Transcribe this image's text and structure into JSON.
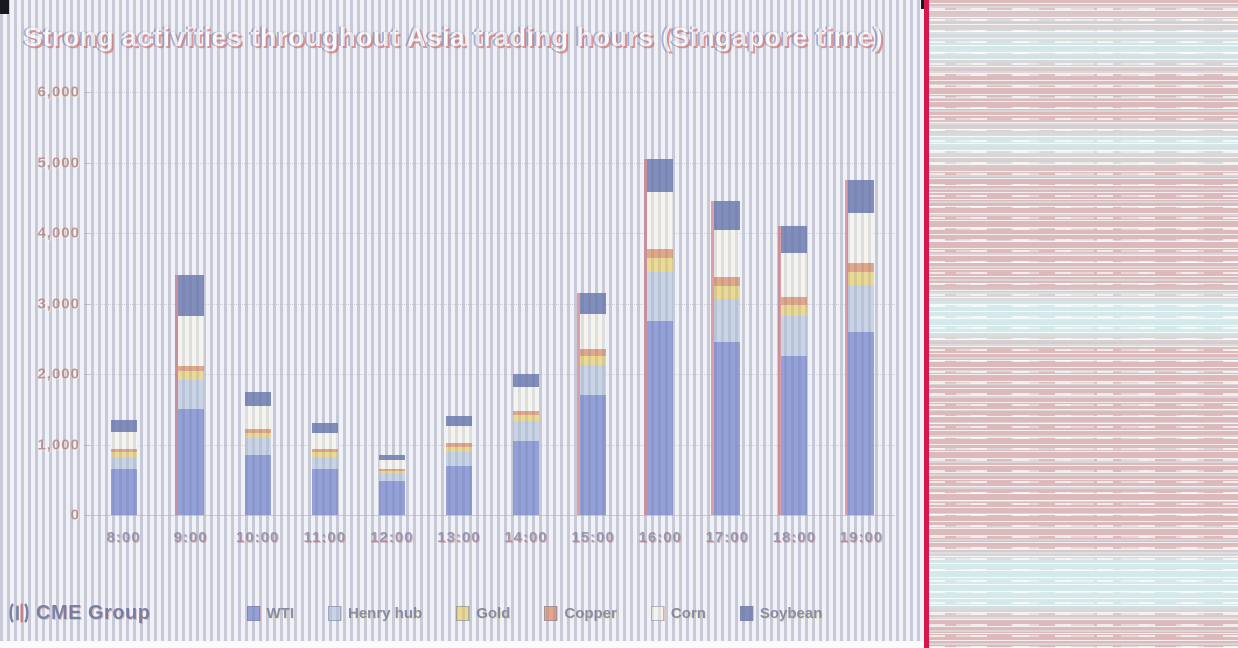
{
  "brand": {
    "name": "CME Group"
  },
  "chart_data": {
    "type": "bar",
    "stacked": true,
    "title": "Strong activities throughout Asia trading hours (Singapore time)",
    "categories": [
      "8:00",
      "9:00",
      "10:00",
      "11:00",
      "12:00",
      "13:00",
      "14:00",
      "15:00",
      "16:00",
      "17:00",
      "18:00",
      "19:00"
    ],
    "series": [
      {
        "name": "WTI",
        "color": "#4f63c0",
        "values": [
          650,
          1500,
          850,
          650,
          480,
          700,
          1050,
          1700,
          2750,
          2450,
          2250,
          2600
        ]
      },
      {
        "name": "Henry hub",
        "color": "#aabdd8",
        "values": [
          180,
          420,
          240,
          180,
          110,
          200,
          280,
          430,
          700,
          620,
          570,
          660
        ]
      },
      {
        "name": "Gold",
        "color": "#e3c84a",
        "values": [
          60,
          120,
          80,
          60,
          40,
          70,
          90,
          130,
          200,
          180,
          160,
          190
        ]
      },
      {
        "name": "Copper",
        "color": "#d4703a",
        "values": [
          40,
          80,
          50,
          40,
          30,
          50,
          60,
          90,
          130,
          120,
          110,
          120
        ]
      },
      {
        "name": "Corn",
        "color": "#f7f3e6",
        "values": [
          250,
          700,
          320,
          230,
          120,
          240,
          330,
          500,
          800,
          680,
          620,
          720
        ]
      },
      {
        "name": "Soybean",
        "color": "#2f4590",
        "values": [
          170,
          580,
          210,
          140,
          70,
          140,
          190,
          300,
          470,
          400,
          390,
          460
        ]
      }
    ],
    "totals": [
      1350,
      3400,
      1750,
      1300,
      850,
      1400,
      2000,
      3150,
      5050,
      4450,
      4100,
      4750
    ],
    "xlabel": "",
    "ylabel": "",
    "ylim": [
      0,
      6000
    ],
    "yticks": [
      0,
      1000,
      2000,
      3000,
      4000,
      5000,
      6000
    ],
    "ytick_labels": [
      "0",
      "1,000",
      "2,000",
      "3,000",
      "4,000",
      "5,000",
      "6,000"
    ],
    "grid": "horizontal-dotted",
    "legend_position": "bottom"
  },
  "colors": {
    "divider": "#d8164e",
    "panel_pink": "#dcbabc",
    "panel_cyan": "#d5e9ea",
    "stripe": "#c7c9d6",
    "title_text": "#fdfdfd",
    "ylabel_text": "#a1524c",
    "xlabel_text": "#565c86"
  }
}
